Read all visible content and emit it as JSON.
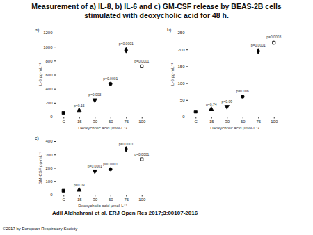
{
  "title": "Measurement of a) IL-8, b) IL-6 and c) GM-CSF release by BEAS-2B cells stimulated with deoxycholic acid for 48 h.",
  "citation": "Adil Aldhahrani et al. ERJ Open Res 2017;3:00107-2016",
  "copyright": "©2017 by European Respiratory Society",
  "chart_data": [
    {
      "type": "scatter",
      "title": "a)",
      "x_label": "Deoxycholic acid µmol·L⁻¹",
      "y_label": "IL-8 pg·mL⁻¹",
      "categories": [
        "C",
        "15",
        "30",
        "50",
        "75",
        "100"
      ],
      "values": [
        55,
        90,
        240,
        470,
        950,
        720
      ],
      "errors": [
        10,
        10,
        20,
        20,
        30,
        15
      ],
      "annotations": [
        null,
        "p=0.15",
        "p=0.003",
        "p=0.0001",
        "p=0.0001",
        "p=0.0001"
      ],
      "ylim": [
        0,
        1200
      ],
      "yticks": [
        0,
        200,
        400,
        600,
        800,
        1000,
        1200
      ],
      "color": "#000000"
    },
    {
      "type": "scatter",
      "title": "b)",
      "x_label": "Deoxycholic acid µmol·L⁻¹",
      "y_label": "IL-6 pg·mL⁻¹",
      "categories": [
        "C",
        "15",
        "30",
        "50",
        "75",
        "100"
      ],
      "values": [
        15,
        22,
        30,
        60,
        195,
        220
      ],
      "errors": [
        2,
        3,
        3,
        4,
        6,
        6
      ],
      "annotations": [
        null,
        "p=0.74",
        "p=0.09",
        "p=0.006",
        "p=0.0001",
        "p=0.0003"
      ],
      "ylim": [
        0,
        250
      ],
      "yticks": [
        0,
        50,
        100,
        150,
        200,
        250
      ],
      "color": "#000000"
    },
    {
      "type": "scatter",
      "title": "c)",
      "x_label": "Deoxycholic acid µmol·L⁻¹",
      "y_label": "GM-CSF pg·mL⁻¹",
      "categories": [
        "C",
        "15",
        "30",
        "50",
        "75",
        "100"
      ],
      "values": [
        30,
        35,
        175,
        190,
        340,
        265
      ],
      "errors": [
        3,
        4,
        6,
        6,
        8,
        6
      ],
      "annotations": [
        null,
        "p=0.09",
        "p=0.0001",
        "p=0.0001",
        "p=0.0001",
        "p=0.0001"
      ],
      "ylim": [
        0,
        400
      ],
      "yticks": [
        0,
        100,
        200,
        300,
        400
      ],
      "color": "#000000"
    }
  ]
}
